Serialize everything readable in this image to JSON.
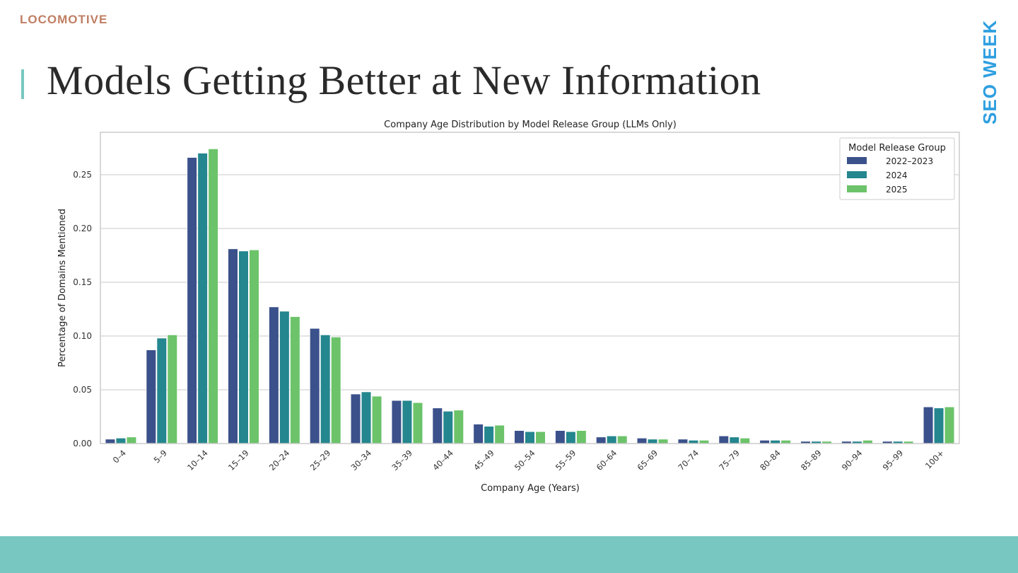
{
  "slide": {
    "logo": "LOCOMOTIVE",
    "title": "Models Getting Better at New Information",
    "brand": "SEO WEEK"
  },
  "colors": {
    "accent": "#78c8c1",
    "logo": "#c07e63",
    "brand": "#2e9fe0",
    "series": [
      "#3b518b",
      "#24868e",
      "#6cc36a"
    ]
  },
  "chart_data": {
    "type": "bar",
    "title": "Company Age Distribution by Model Release Group (LLMs Only)",
    "xlabel": "Company Age (Years)",
    "ylabel": "Percentage of Domains Mentioned",
    "ylim": [
      0,
      0.28
    ],
    "yticks": [
      "0.00",
      "0.05",
      "0.10",
      "0.15",
      "0.20",
      "0.25"
    ],
    "grid": true,
    "legend": {
      "title": "Model Release Group",
      "placement": "top-right"
    },
    "categories": [
      "0–4",
      "5–9",
      "10–14",
      "15–19",
      "20–24",
      "25–29",
      "30–34",
      "35–39",
      "40–44",
      "45–49",
      "50–54",
      "55–59",
      "60–64",
      "65–69",
      "70–74",
      "75–79",
      "80–84",
      "85–89",
      "90–94",
      "95–99",
      "100+"
    ],
    "series": [
      {
        "name": "2022–2023",
        "values": [
          0.004,
          0.087,
          0.266,
          0.181,
          0.127,
          0.107,
          0.046,
          0.04,
          0.033,
          0.018,
          0.012,
          0.012,
          0.006,
          0.005,
          0.004,
          0.007,
          0.003,
          0.002,
          0.002,
          0.002,
          0.034
        ]
      },
      {
        "name": "2024",
        "values": [
          0.005,
          0.098,
          0.27,
          0.179,
          0.123,
          0.101,
          0.048,
          0.04,
          0.03,
          0.016,
          0.011,
          0.011,
          0.007,
          0.004,
          0.003,
          0.006,
          0.003,
          0.002,
          0.002,
          0.002,
          0.033
        ]
      },
      {
        "name": "2025",
        "values": [
          0.006,
          0.101,
          0.274,
          0.18,
          0.118,
          0.099,
          0.044,
          0.038,
          0.031,
          0.017,
          0.011,
          0.012,
          0.007,
          0.004,
          0.003,
          0.005,
          0.003,
          0.002,
          0.003,
          0.002,
          0.034
        ]
      }
    ]
  }
}
